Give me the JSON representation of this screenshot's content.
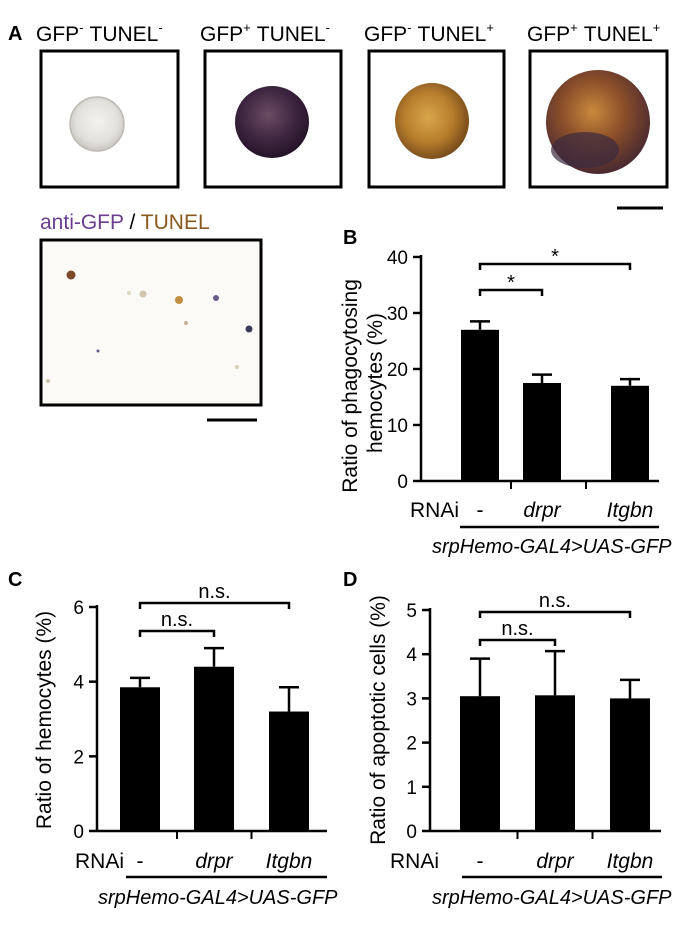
{
  "panel_a": {
    "letter": "A",
    "cell_headers": [
      {
        "gfp": "GFP",
        "gfp_sup": "-",
        "tunel": "TUNEL",
        "tunel_sup": "-"
      },
      {
        "gfp": "GFP",
        "gfp_sup": "+",
        "tunel": "TUNEL",
        "tunel_sup": "-"
      },
      {
        "gfp": "GFP",
        "gfp_sup": "-",
        "tunel": "TUNEL",
        "tunel_sup": "+"
      },
      {
        "gfp": "GFP",
        "gfp_sup": "+",
        "tunel": "TUNEL",
        "tunel_sup": "+"
      }
    ],
    "overview_label": {
      "first": "anti-GFP",
      "separator": " / ",
      "second": "TUNEL"
    },
    "colors": {
      "gfp_stain": "#6a3d8f",
      "tunel_stain": "#8a5a1c"
    }
  },
  "rnai_label": "RNAi",
  "genotype": "srpHemo-GAL4>UAS-GFP",
  "chart_data": [
    {
      "panel": "B",
      "type": "bar",
      "categories": [
        "-",
        "drpr",
        "Itgbn"
      ],
      "values": [
        27,
        17.5,
        17
      ],
      "errors": [
        1.5,
        1.5,
        1.2
      ],
      "ylabel": "Ratio of phagocytosing hemocytes (%)",
      "ylabel_lines": [
        "Ratio of phagocytosing",
        "hemocytes (%)"
      ],
      "ylim": [
        0,
        40
      ],
      "yticks": [
        "0",
        "10",
        "20",
        "30",
        "40"
      ],
      "comparisons": [
        {
          "from": 0,
          "to": 1,
          "label": "*"
        },
        {
          "from": 0,
          "to": 2,
          "label": "*"
        }
      ]
    },
    {
      "panel": "C",
      "type": "bar",
      "categories": [
        "-",
        "drpr",
        "Itgbn"
      ],
      "values": [
        3.85,
        4.4,
        3.2
      ],
      "errors": [
        0.25,
        0.5,
        0.65
      ],
      "ylabel": "Ratio of hemocytes (%)",
      "ylabel_lines": [
        "Ratio of hemocytes (%)"
      ],
      "ylim": [
        0,
        6
      ],
      "yticks": [
        "0",
        "2",
        "4",
        "6"
      ],
      "comparisons": [
        {
          "from": 0,
          "to": 1,
          "label": "n.s."
        },
        {
          "from": 0,
          "to": 2,
          "label": "n.s."
        }
      ]
    },
    {
      "panel": "D",
      "type": "bar",
      "categories": [
        "-",
        "drpr",
        "Itgbn"
      ],
      "values": [
        3.05,
        3.07,
        3.0
      ],
      "errors": [
        0.85,
        1.0,
        0.42
      ],
      "ylabel": "Ratio of apoptotic cells (%)",
      "ylabel_lines": [
        "Ratio of apoptotic cells (%)"
      ],
      "ylim": [
        0,
        5
      ],
      "yticks": [
        "0",
        "1",
        "2",
        "3",
        "4",
        "5"
      ],
      "comparisons": [
        {
          "from": 0,
          "to": 1,
          "label": "n.s."
        },
        {
          "from": 0,
          "to": 2,
          "label": "n.s."
        }
      ]
    }
  ]
}
